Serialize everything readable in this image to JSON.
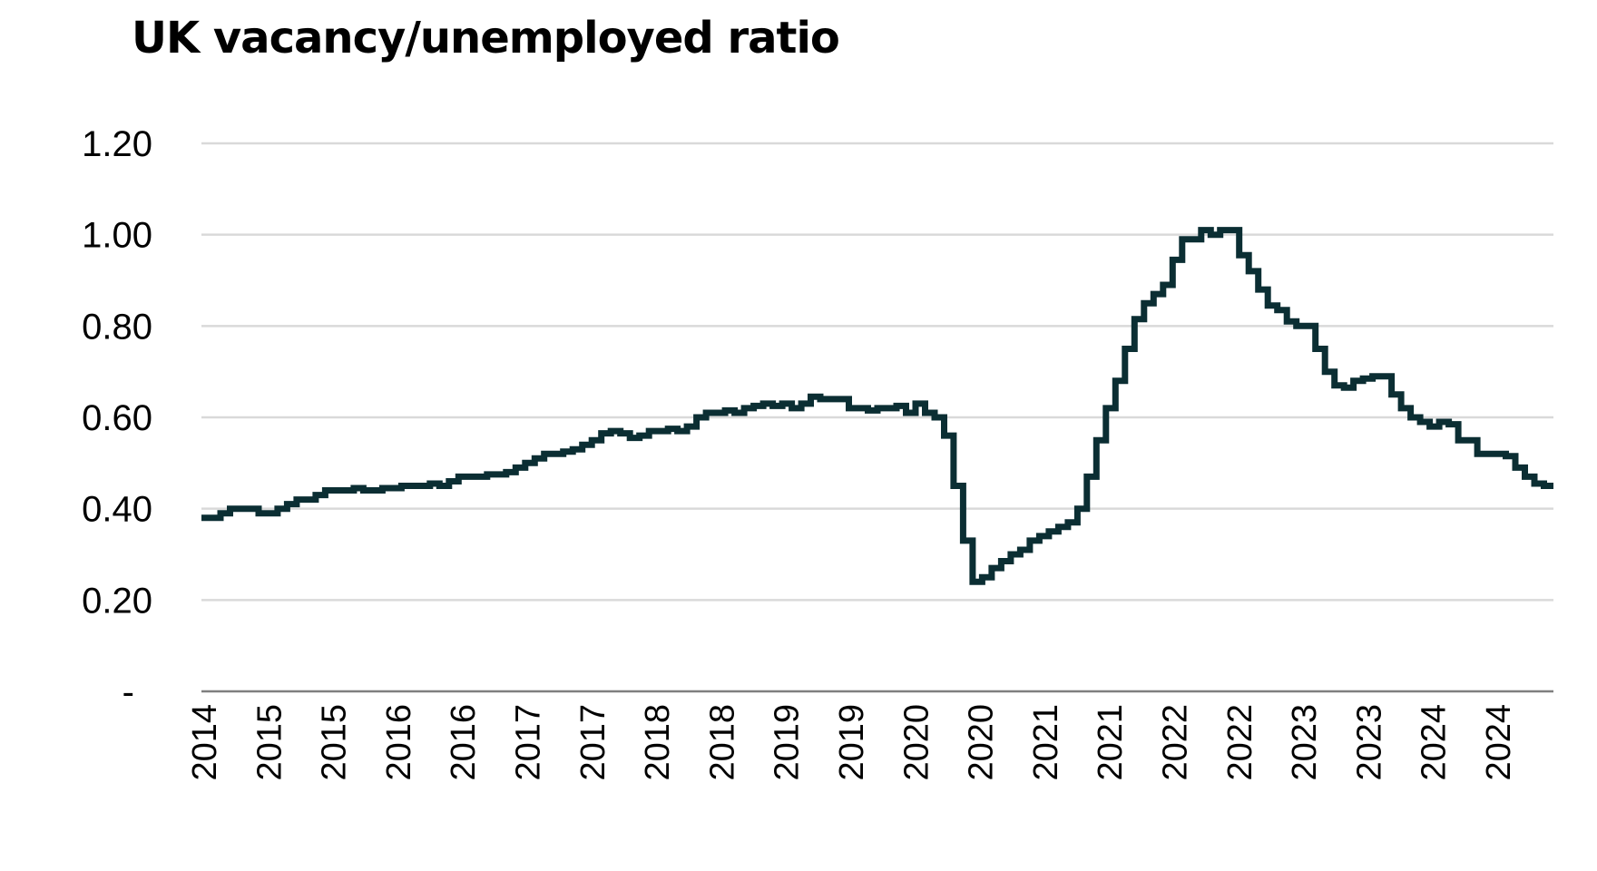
{
  "chart_data": {
    "type": "line",
    "title": "UK vacancy/unemployed ratio",
    "xlabel": "",
    "ylabel": "",
    "ylim": [
      0,
      1.2
    ],
    "grid": true,
    "legend": "none",
    "y_tick_labels": [
      "-",
      "0.20",
      "0.40",
      "0.60",
      "0.80",
      "1.00",
      "1.20"
    ],
    "y_tick_values": [
      0,
      0.2,
      0.4,
      0.6,
      0.8,
      1.0,
      1.2
    ],
    "x_tick_labels": [
      "2014",
      "2015",
      "2015",
      "2016",
      "2016",
      "2017",
      "2017",
      "2018",
      "2018",
      "2019",
      "2019",
      "2020",
      "2020",
      "2021",
      "2021",
      "2022",
      "2022",
      "2023",
      "2023",
      "2024",
      "2024"
    ],
    "colors": {
      "line": "#0b2e33",
      "grid": "#d9d9d9",
      "axis": "#7f7f7f"
    },
    "series": [
      {
        "values": [
          0.38,
          0.38,
          0.39,
          0.4,
          0.4,
          0.4,
          0.39,
          0.39,
          0.4,
          0.41,
          0.42,
          0.42,
          0.43,
          0.44,
          0.44,
          0.44,
          0.445,
          0.44,
          0.44,
          0.445,
          0.445,
          0.45,
          0.45,
          0.45,
          0.455,
          0.45,
          0.46,
          0.47,
          0.47,
          0.47,
          0.475,
          0.475,
          0.48,
          0.49,
          0.5,
          0.51,
          0.52,
          0.52,
          0.525,
          0.53,
          0.54,
          0.55,
          0.565,
          0.57,
          0.565,
          0.555,
          0.56,
          0.57,
          0.57,
          0.575,
          0.57,
          0.58,
          0.6,
          0.61,
          0.61,
          0.615,
          0.61,
          0.62,
          0.625,
          0.63,
          0.625,
          0.63,
          0.62,
          0.63,
          0.645,
          0.64,
          0.64,
          0.64,
          0.62,
          0.62,
          0.615,
          0.62,
          0.62,
          0.625,
          0.61,
          0.63,
          0.61,
          0.6,
          0.56,
          0.45,
          0.33,
          0.24,
          0.25,
          0.27,
          0.285,
          0.3,
          0.31,
          0.33,
          0.34,
          0.35,
          0.36,
          0.37,
          0.4,
          0.47,
          0.55,
          0.62,
          0.68,
          0.75,
          0.815,
          0.85,
          0.87,
          0.89,
          0.945,
          0.99,
          0.99,
          1.01,
          1.0,
          1.01,
          1.01,
          0.955,
          0.92,
          0.88,
          0.845,
          0.835,
          0.81,
          0.8,
          0.8,
          0.75,
          0.7,
          0.67,
          0.665,
          0.68,
          0.685,
          0.69,
          0.69,
          0.65,
          0.62,
          0.6,
          0.59,
          0.58,
          0.59,
          0.585,
          0.55,
          0.55,
          0.52,
          0.52,
          0.52,
          0.515,
          0.49,
          0.47,
          0.455,
          0.45
        ]
      }
    ]
  }
}
